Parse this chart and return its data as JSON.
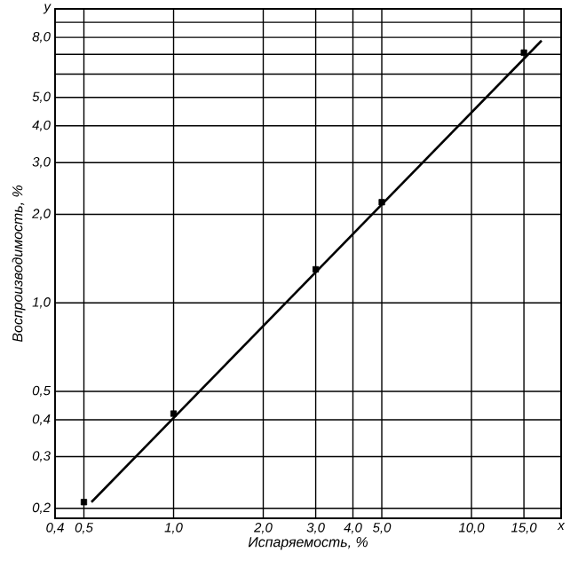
{
  "chart_data": {
    "type": "scatter",
    "xlabel": "Испаряемость, %",
    "ylabel": "Воспроизводимость, %",
    "log": "xy",
    "grid": true,
    "xlim": [
      0.4,
      20
    ],
    "ylim": [
      0.185,
      10
    ],
    "xticks": [
      {
        "value": 0.4,
        "label": "0,4"
      },
      {
        "value": 0.5,
        "label": "0,5"
      },
      {
        "value": 1,
        "label": "1,0"
      },
      {
        "value": 2,
        "label": "2,0"
      },
      {
        "value": 3,
        "label": "3,0"
      },
      {
        "value": 4,
        "label": "4,0"
      },
      {
        "value": 5,
        "label": "5,0"
      },
      {
        "value": 10,
        "label": "10,0"
      },
      {
        "value": 15,
        "label": "15,0"
      },
      {
        "value": 20,
        "label": "x"
      }
    ],
    "yticks": [
      {
        "value": 0.2,
        "label": "0,2"
      },
      {
        "value": 0.3,
        "label": "0,3"
      },
      {
        "value": 0.4,
        "label": "0,4"
      },
      {
        "value": 0.5,
        "label": "0,5"
      },
      {
        "value": 1,
        "label": "1,0"
      },
      {
        "value": 2,
        "label": "2,0"
      },
      {
        "value": 3,
        "label": "3,0"
      },
      {
        "value": 4,
        "label": "4,0"
      },
      {
        "value": 5,
        "label": "5,0"
      },
      {
        "value": 6,
        "label": null
      },
      {
        "value": 7,
        "label": null
      },
      {
        "value": 8,
        "label": "8,0"
      },
      {
        "value": 9,
        "label": null
      },
      {
        "value": 10,
        "label": "y"
      }
    ],
    "series": [
      {
        "color": "#000000",
        "marker": "square",
        "x": [
          0.5,
          1.0,
          3.0,
          5.0,
          15.0
        ],
        "values": [
          0.21,
          0.42,
          1.3,
          2.2,
          7.1
        ]
      },
      {
        "type": "line",
        "color": "#000000",
        "marker": "none",
        "line_style": "solid",
        "x": [
          0.53,
          17.2
        ],
        "values": [
          0.21,
          7.8
        ]
      }
    ]
  }
}
